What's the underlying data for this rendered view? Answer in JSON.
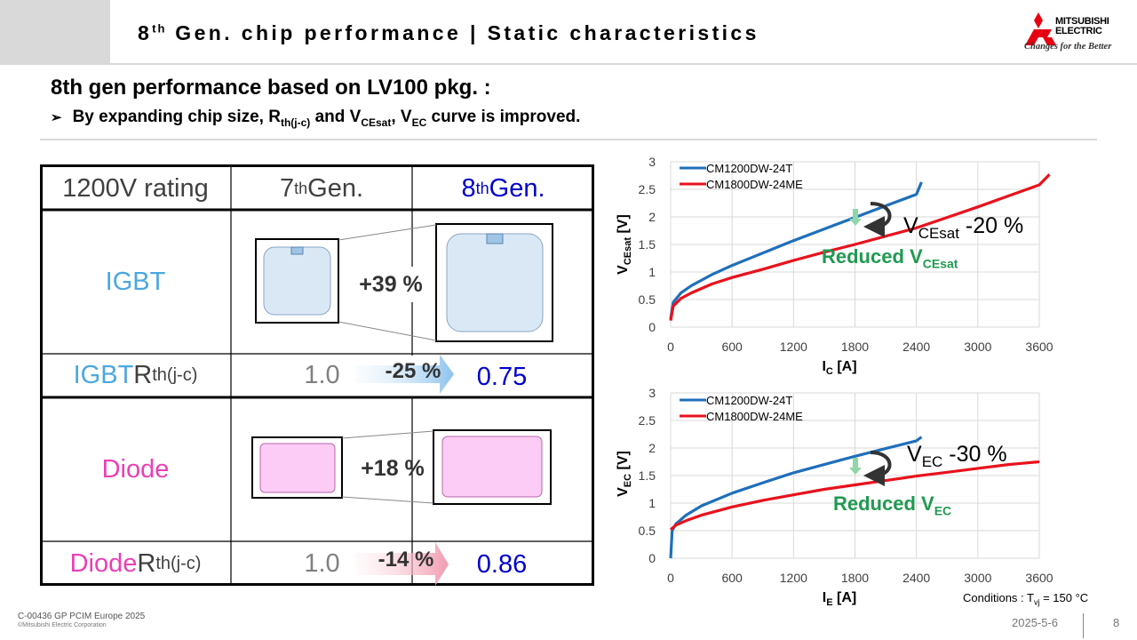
{
  "header": {
    "title_prefix": "8",
    "title_sup": "th",
    "title_rest": " Gen. chip performance | Static characteristics",
    "logo_name_line1": "MITSUBISHI",
    "logo_name_line2": "ELECTRIC",
    "logo_tagline": "Changes for the Better"
  },
  "subtitle": "8th gen performance based on LV100 pkg. :",
  "bullet": {
    "symbol": "➢",
    "part1": "By expanding chip size, R",
    "sub1": "th(j-c)",
    "part2": " and V",
    "sub2": "CEsat",
    "part3": ", V",
    "sub3": "EC",
    "part4": " curve is improved."
  },
  "table": {
    "header_rating": "1200V rating",
    "header_gen7": "7",
    "header_gen7_sup": "th",
    "header_gen7_rest": " Gen.",
    "header_gen8": "8",
    "header_gen8_sup": "th",
    "header_gen8_rest": " Gen.",
    "igbt_label": "IGBT",
    "igbt_increase": "+39 %",
    "igbt_rth_label": "IGBT ",
    "igbt_rth_r": "R",
    "igbt_rth_sub": "th(j-c)",
    "igbt_rth_gen7": "1.0",
    "igbt_rth_change": "-25 %",
    "igbt_rth_gen8": "0.75",
    "diode_label": "Diode",
    "diode_increase": "+18 %",
    "diode_rth_label": "Diode ",
    "diode_rth_r": "R",
    "diode_rth_sub": "th(j-c)",
    "diode_rth_gen7": "1.0",
    "diode_rth_change": "-14 %",
    "diode_rth_gen8": "0.86"
  },
  "colors": {
    "igbt_blue": "#4aa8e0",
    "diode_pink": "#ea3fb6",
    "gen8_blue": "#0000cc",
    "gray_text": "#808080",
    "reduced_green": "#1f9a50",
    "series_blue": "#1f6fba",
    "series_red": "#e8121c"
  },
  "chart_annotations": {
    "vce_label": "V",
    "vce_sub": "CEsat",
    "vce_change": " -20 %",
    "vce_reduced": "Reduced V",
    "vce_reduced_sub": "CEsat",
    "vec_label": "V",
    "vec_sub": "EC",
    "vec_change": " -30 %",
    "vec_reduced": "Reduced V",
    "vec_reduced_sub": "EC"
  },
  "chart_data": [
    {
      "type": "line",
      "xlabel_main": "I",
      "xlabel_sub": "C",
      "xlabel_unit": " [A]",
      "ylabel_main": "V",
      "ylabel_sub": "CEsat",
      "ylabel_unit": " [V]",
      "xlim": [
        0,
        3600
      ],
      "ylim": [
        0,
        3
      ],
      "x_ticks": [
        "0",
        "600",
        "1200",
        "1800",
        "2400",
        "3000",
        "3600"
      ],
      "y_ticks": [
        "0",
        "0.5",
        "1",
        "1.5",
        "2",
        "2.5",
        "3"
      ],
      "grid": true,
      "legend_position": "top-left",
      "series": [
        {
          "name": "CM1200DW-24T",
          "color": "#1f6fba",
          "points": [
            [
              0,
              0.15
            ],
            [
              25,
              0.45
            ],
            [
              100,
              0.62
            ],
            [
              200,
              0.75
            ],
            [
              400,
              0.95
            ],
            [
              600,
              1.12
            ],
            [
              800,
              1.27
            ],
            [
              1000,
              1.42
            ],
            [
              1200,
              1.57
            ],
            [
              1400,
              1.71
            ],
            [
              1600,
              1.85
            ],
            [
              1800,
              1.99
            ],
            [
              2000,
              2.13
            ],
            [
              2200,
              2.27
            ],
            [
              2400,
              2.41
            ],
            [
              2450,
              2.63
            ]
          ]
        },
        {
          "name": "CM1800DW-24ME",
          "color": "#e8121c",
          "points": [
            [
              0,
              0.12
            ],
            [
              25,
              0.38
            ],
            [
              100,
              0.52
            ],
            [
              200,
              0.62
            ],
            [
              400,
              0.78
            ],
            [
              600,
              0.9
            ],
            [
              900,
              1.05
            ],
            [
              1200,
              1.21
            ],
            [
              1500,
              1.36
            ],
            [
              1800,
              1.5
            ],
            [
              2100,
              1.65
            ],
            [
              2400,
              1.8
            ],
            [
              2700,
              1.99
            ],
            [
              3000,
              2.18
            ],
            [
              3300,
              2.38
            ],
            [
              3600,
              2.58
            ],
            [
              3700,
              2.77
            ]
          ]
        }
      ]
    },
    {
      "type": "line",
      "xlabel_main": "I",
      "xlabel_sub": "E",
      "xlabel_unit": " [A]",
      "ylabel_main": "V",
      "ylabel_sub": "EC",
      "ylabel_unit": " [V]",
      "xlim": [
        0,
        3600
      ],
      "ylim": [
        0,
        3
      ],
      "x_ticks": [
        "0",
        "600",
        "1200",
        "1800",
        "2400",
        "3000",
        "3600"
      ],
      "y_ticks": [
        "0",
        "0.5",
        "1",
        "1.5",
        "2",
        "2.5",
        "3"
      ],
      "grid": true,
      "legend_position": "top-left",
      "series": [
        {
          "name": "CM1200DW-24T",
          "color": "#1f6fba",
          "points": [
            [
              0,
              0.0
            ],
            [
              15,
              0.5
            ],
            [
              50,
              0.62
            ],
            [
              150,
              0.78
            ],
            [
              300,
              0.95
            ],
            [
              600,
              1.18
            ],
            [
              900,
              1.37
            ],
            [
              1200,
              1.55
            ],
            [
              1500,
              1.7
            ],
            [
              1800,
              1.85
            ],
            [
              2100,
              1.99
            ],
            [
              2400,
              2.13
            ],
            [
              2450,
              2.2
            ]
          ]
        },
        {
          "name": "CM1800DW-24ME",
          "color": "#e8121c",
          "points": [
            [
              0,
              0.52
            ],
            [
              50,
              0.6
            ],
            [
              150,
              0.68
            ],
            [
              300,
              0.78
            ],
            [
              600,
              0.93
            ],
            [
              900,
              1.05
            ],
            [
              1200,
              1.15
            ],
            [
              1500,
              1.25
            ],
            [
              1800,
              1.33
            ],
            [
              2100,
              1.41
            ],
            [
              2400,
              1.49
            ],
            [
              2700,
              1.56
            ],
            [
              3000,
              1.63
            ],
            [
              3300,
              1.7
            ],
            [
              3600,
              1.75
            ]
          ]
        }
      ]
    }
  ],
  "conditions": {
    "text": "Conditions : T",
    "sub": "vj",
    "rest": " = 150 °C"
  },
  "footer": {
    "doc_id": "C-00436 GP PCIM Europe 2025",
    "copyright": "©Mitsubishi Electric Corporation",
    "date": "2025-5-6",
    "page": "8"
  }
}
